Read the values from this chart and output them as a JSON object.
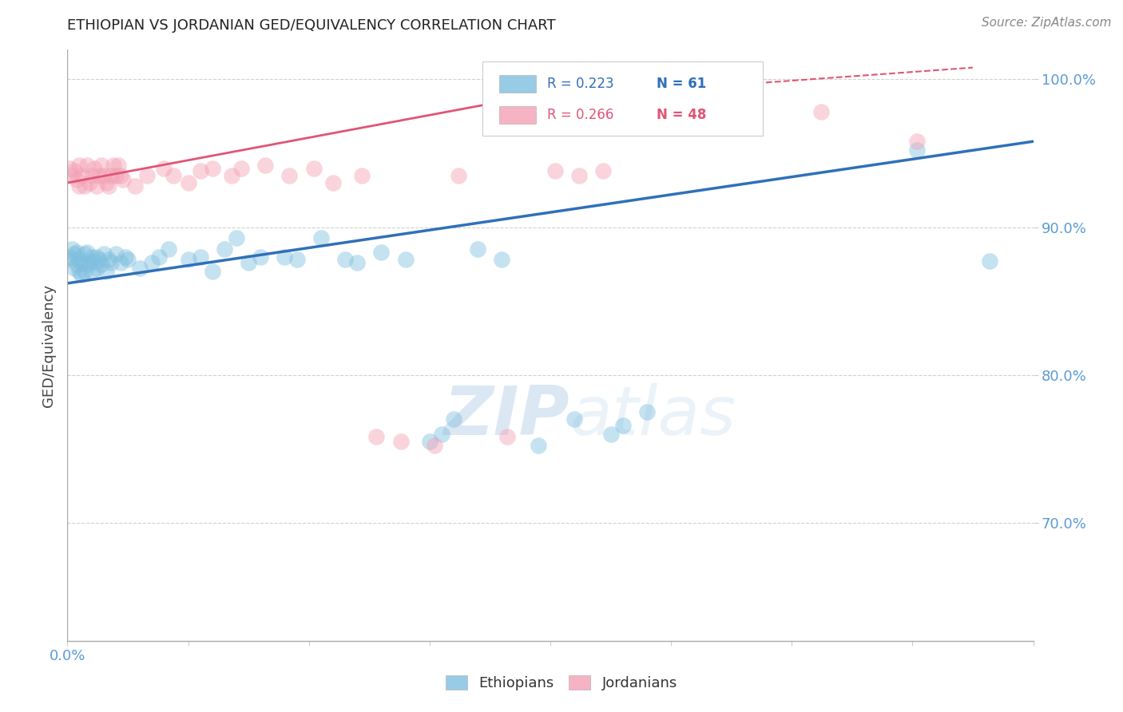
{
  "title": "ETHIOPIAN VS JORDANIAN GED/EQUIVALENCY CORRELATION CHART",
  "source": "Source: ZipAtlas.com",
  "ylabel_label": "GED/Equivalency",
  "xlim": [
    0.0,
    0.4
  ],
  "ylim": [
    0.62,
    1.02
  ],
  "xticks": [
    0.0,
    0.05,
    0.1,
    0.15,
    0.2,
    0.25,
    0.3,
    0.35,
    0.4
  ],
  "xtick_labels_show": {
    "0.0": "0.0%"
  },
  "yticks": [
    0.7,
    0.8,
    0.9,
    1.0
  ],
  "ytick_labels": [
    "70.0%",
    "80.0%",
    "90.0%",
    "100.0%"
  ],
  "legend_R_blue": "R = 0.223",
  "legend_N_blue": "N = 61",
  "legend_R_pink": "R = 0.266",
  "legend_N_pink": "N = 48",
  "blue_color": "#7fbfdf",
  "pink_color": "#f4a0b5",
  "blue_line_color": "#3070b8",
  "pink_line_color": "#e05575",
  "watermark_zip": "ZIP",
  "watermark_atlas": "atlas",
  "background_color": "#ffffff",
  "title_color": "#222222",
  "axis_label_color": "#444444",
  "tick_color_y": "#5b9bd5",
  "tick_color_x": "#5b9bd5",
  "source_color": "#888888",
  "ethiopians_x": [
    0.001,
    0.002,
    0.002,
    0.003,
    0.003,
    0.004,
    0.004,
    0.005,
    0.005,
    0.006,
    0.006,
    0.007,
    0.007,
    0.008,
    0.008,
    0.009,
    0.01,
    0.01,
    0.011,
    0.012,
    0.012,
    0.013,
    0.014,
    0.015,
    0.016,
    0.017,
    0.018,
    0.02,
    0.022,
    0.024,
    0.025,
    0.03,
    0.035,
    0.038,
    0.042,
    0.05,
    0.055,
    0.06,
    0.065,
    0.07,
    0.075,
    0.08,
    0.09,
    0.095,
    0.105,
    0.115,
    0.12,
    0.13,
    0.14,
    0.15,
    0.155,
    0.16,
    0.17,
    0.18,
    0.195,
    0.21,
    0.225,
    0.23,
    0.24,
    0.352,
    0.382
  ],
  "ethiopians_y": [
    0.88,
    0.878,
    0.885,
    0.872,
    0.882,
    0.875,
    0.883,
    0.87,
    0.878,
    0.868,
    0.876,
    0.882,
    0.87,
    0.875,
    0.883,
    0.877,
    0.87,
    0.88,
    0.876,
    0.872,
    0.88,
    0.878,
    0.875,
    0.882,
    0.87,
    0.878,
    0.876,
    0.882,
    0.876,
    0.88,
    0.878,
    0.872,
    0.876,
    0.88,
    0.885,
    0.878,
    0.88,
    0.87,
    0.885,
    0.893,
    0.876,
    0.88,
    0.88,
    0.878,
    0.893,
    0.878,
    0.876,
    0.883,
    0.878,
    0.755,
    0.76,
    0.77,
    0.885,
    0.878,
    0.752,
    0.77,
    0.76,
    0.766,
    0.775,
    0.952,
    0.877
  ],
  "jordanians_x": [
    0.001,
    0.002,
    0.003,
    0.004,
    0.005,
    0.005,
    0.006,
    0.007,
    0.008,
    0.009,
    0.01,
    0.011,
    0.012,
    0.013,
    0.014,
    0.015,
    0.016,
    0.017,
    0.018,
    0.019,
    0.02,
    0.021,
    0.022,
    0.023,
    0.028,
    0.033,
    0.04,
    0.044,
    0.05,
    0.055,
    0.06,
    0.068,
    0.072,
    0.082,
    0.092,
    0.102,
    0.11,
    0.122,
    0.128,
    0.138,
    0.152,
    0.162,
    0.182,
    0.202,
    0.212,
    0.222,
    0.312,
    0.352
  ],
  "jordanians_y": [
    0.94,
    0.935,
    0.938,
    0.932,
    0.928,
    0.942,
    0.935,
    0.928,
    0.942,
    0.93,
    0.935,
    0.94,
    0.928,
    0.935,
    0.942,
    0.935,
    0.93,
    0.928,
    0.935,
    0.942,
    0.935,
    0.942,
    0.935,
    0.932,
    0.928,
    0.935,
    0.94,
    0.935,
    0.93,
    0.938,
    0.94,
    0.935,
    0.94,
    0.942,
    0.935,
    0.94,
    0.93,
    0.935,
    0.758,
    0.755,
    0.752,
    0.935,
    0.758,
    0.938,
    0.935,
    0.938,
    0.978,
    0.958
  ],
  "dot_size": 220,
  "dot_alpha": 0.45,
  "blue_trend": [
    0.0,
    0.862,
    0.4,
    0.958
  ],
  "pink_trend_solid": [
    0.0,
    0.93,
    0.18,
    0.985
  ],
  "pink_trend_dash": [
    0.18,
    0.985,
    0.375,
    1.008
  ]
}
